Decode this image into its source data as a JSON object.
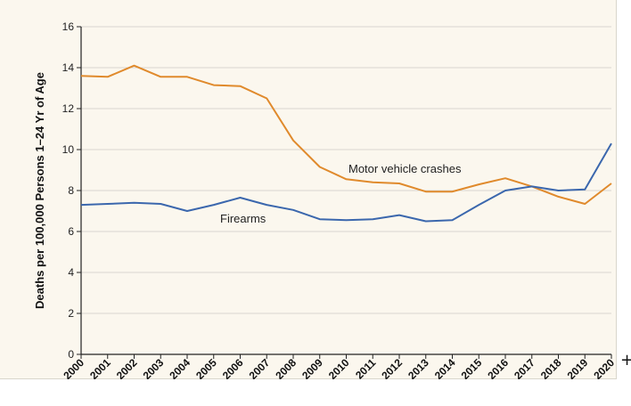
{
  "chart_data": {
    "type": "line",
    "title": "",
    "xlabel": "",
    "ylabel": "Deaths per 100,000 Persons 1–24 Yr of Age",
    "ylim": [
      0,
      16
    ],
    "yticks": [
      "0",
      "2",
      "4",
      "6",
      "8",
      "10",
      "12",
      "14",
      "16"
    ],
    "x": [
      "2000",
      "2001",
      "2002",
      "2003",
      "2004",
      "2005",
      "2006",
      "2007",
      "2008",
      "2009",
      "2010",
      "2011",
      "2012",
      "2013",
      "2014",
      "2015",
      "2016",
      "2017",
      "2018",
      "2019",
      "2020"
    ],
    "grid": true,
    "series": [
      {
        "name": "Motor vehicle crashes",
        "color": "#e08a2c",
        "values": [
          13.6,
          13.55,
          14.1,
          13.55,
          13.55,
          13.15,
          13.1,
          12.5,
          10.45,
          9.15,
          8.55,
          8.4,
          8.35,
          7.95,
          7.95,
          8.3,
          8.6,
          8.2,
          7.7,
          7.35,
          8.35
        ]
      },
      {
        "name": "Firearms",
        "color": "#3b67ad",
        "values": [
          7.3,
          7.35,
          7.4,
          7.35,
          7.0,
          7.3,
          7.65,
          7.3,
          7.05,
          6.6,
          6.55,
          6.6,
          6.8,
          6.5,
          6.55,
          7.3,
          8.0,
          8.2,
          8.0,
          8.05,
          10.3
        ]
      }
    ],
    "annotations": [
      {
        "series": 0,
        "text": "Motor vehicle crashes"
      },
      {
        "series": 1,
        "text": "Firearms"
      }
    ]
  },
  "ui": {
    "plus_icon": "plus-icon",
    "plus_glyph": "+"
  }
}
